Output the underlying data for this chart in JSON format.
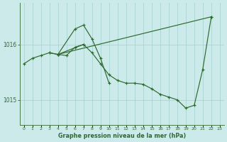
{
  "background_color": "#cceaea",
  "plot_bg_color": "#cceaea",
  "line_color": "#2d6a2d",
  "grid_color_v": "#aad4d4",
  "grid_color_h": "#aad4d4",
  "title": "Graphe pression niveau de la mer (hPa)",
  "yticks": [
    1015,
    1016
  ],
  "ylim": [
    1014.55,
    1016.75
  ],
  "xlim": [
    -0.5,
    23.5
  ],
  "series1_x": [
    0,
    1,
    2,
    3,
    4,
    5,
    6,
    7,
    8,
    9,
    10,
    11,
    12,
    13,
    14,
    15,
    16,
    17,
    18,
    19,
    20,
    21,
    22
  ],
  "series1_y": [
    1015.65,
    1015.75,
    1015.8,
    1015.85,
    1015.82,
    1015.8,
    1015.95,
    1016.0,
    1015.85,
    1015.65,
    1015.45,
    1015.35,
    1015.3,
    1015.3,
    1015.28,
    1015.2,
    1015.1,
    1015.05,
    1015.0,
    1014.85,
    1014.9,
    1015.55,
    1016.5
  ],
  "series2_x": [
    3,
    4,
    6,
    7,
    8,
    9,
    10
  ],
  "series2_y": [
    1015.85,
    1015.82,
    1016.28,
    1016.35,
    1016.1,
    1015.75,
    1015.3
  ],
  "series3_x": [
    4,
    7
  ],
  "series3_y": [
    1015.82,
    1016.0
  ],
  "series4_x": [
    4,
    22
  ],
  "series4_y": [
    1015.82,
    1016.5
  ]
}
